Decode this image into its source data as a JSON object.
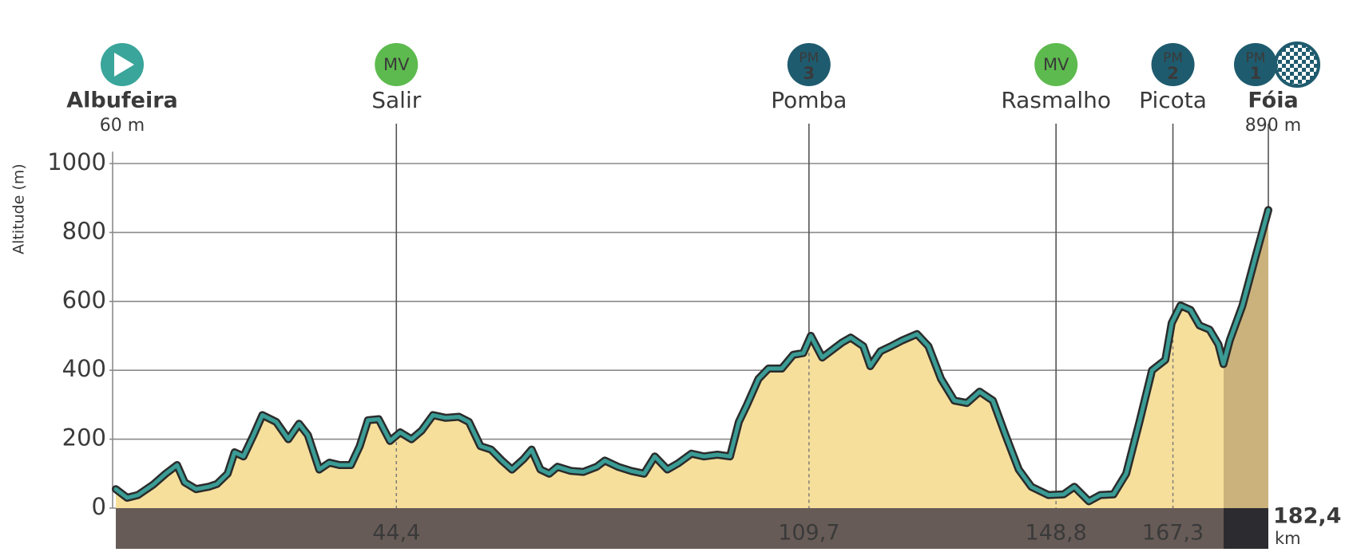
{
  "chart_data": {
    "type": "area",
    "y_label": "Altitude (m)",
    "xlim": [
      0,
      182.4
    ],
    "ylim": [
      0,
      1000
    ],
    "yticks": [
      0,
      200,
      400,
      600,
      800,
      1000
    ],
    "grid": true,
    "color": "#f6df9b",
    "line_color": "#3a9c95",
    "x": [
      0,
      1.8,
      3.5,
      5.9,
      7.9,
      9.7,
      10.9,
      12.7,
      14.7,
      16,
      17.7,
      18.8,
      20.2,
      21.8,
      23.2,
      25.4,
      27.3,
      29,
      30.4,
      32.2,
      33.8,
      35.4,
      37.2,
      38.6,
      39.9,
      41.6,
      43.4,
      45,
      46.8,
      48.4,
      50.2,
      52.2,
      54.3,
      55.9,
      57.7,
      59.4,
      61.1,
      62.7,
      64.5,
      65.8,
      67.2,
      68.6,
      69.9,
      72,
      74,
      76.1,
      77.4,
      79.5,
      81.5,
      83.6,
      85.3,
      87.3,
      89,
      91.1,
      93.1,
      95.2,
      97.2,
      98.6,
      99.9,
      101.7,
      103.3,
      105.4,
      107.2,
      108.8,
      110,
      111.8,
      113.6,
      114.9,
      116.3,
      118.3,
      119.4,
      121,
      122.7,
      124.5,
      126.8,
      128.6,
      130.6,
      132.7,
      134.7,
      136.7,
      138.8,
      140.8,
      142.9,
      144.9,
      147.6,
      150,
      151.7,
      154,
      155.8,
      157.9,
      159.9,
      162,
      164,
      166.1,
      167.1,
      168.5,
      170.1,
      171.5,
      173.1,
      174.5,
      175.3,
      176.3,
      178.3,
      180.3,
      182.4
    ],
    "values": [
      55,
      30,
      38,
      68,
      100,
      125,
      75,
      55,
      62,
      70,
      100,
      162,
      150,
      212,
      270,
      250,
      200,
      245,
      212,
      112,
      132,
      125,
      125,
      180,
      255,
      258,
      195,
      220,
      200,
      225,
      270,
      262,
      265,
      250,
      180,
      170,
      138,
      112,
      142,
      170,
      112,
      100,
      120,
      108,
      105,
      120,
      138,
      120,
      108,
      100,
      150,
      112,
      130,
      158,
      150,
      155,
      150,
      250,
      300,
      375,
      405,
      405,
      445,
      450,
      500,
      437,
      462,
      480,
      495,
      470,
      412,
      455,
      470,
      487,
      505,
      470,
      375,
      312,
      305,
      338,
      312,
      212,
      112,
      62,
      38,
      40,
      62,
      20,
      38,
      40,
      100,
      250,
      400,
      430,
      537,
      588,
      575,
      530,
      518,
      475,
      418,
      487,
      588,
      725,
      865
    ],
    "waypoints": [
      {
        "name": "Albufeira",
        "badge": "start",
        "altitude": {
          "value": 60,
          "label": "60 m"
        }
      },
      {
        "name": "Salir",
        "badge": "MV",
        "km": {
          "value": 44.4,
          "label": "44,4"
        }
      },
      {
        "name": "Pomba",
        "badge": "PM",
        "badge_number": 3,
        "km": {
          "value": 109.7,
          "label": "109,7"
        }
      },
      {
        "name": "Rasmalho",
        "badge": "MV",
        "km": {
          "value": 148.8,
          "label": "148,8"
        }
      },
      {
        "name": "Picota",
        "badge": "PM",
        "badge_number": 2,
        "km": {
          "value": 167.3,
          "label": "167,3"
        }
      },
      {
        "name": "Fóia",
        "badge": "PM",
        "badge_number": 1,
        "finish": true,
        "altitude": {
          "value": 890,
          "label": "890 m"
        }
      }
    ],
    "distance": {
      "value": 182.4,
      "label": "182,4"
    },
    "distance_unit": "km"
  }
}
